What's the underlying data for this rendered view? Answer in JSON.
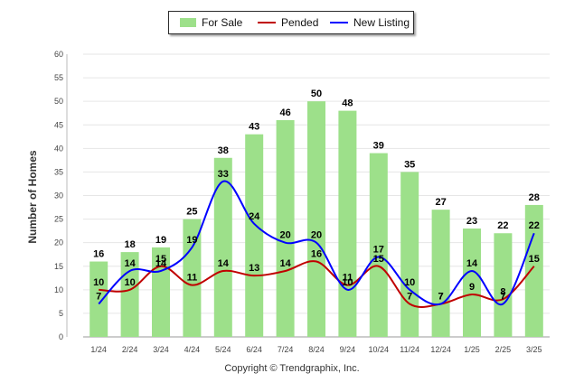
{
  "chart_data": {
    "type": "bar",
    "categories": [
      "1/24",
      "2/24",
      "3/24",
      "4/24",
      "5/24",
      "6/24",
      "7/24",
      "8/24",
      "9/24",
      "10/24",
      "11/24",
      "12/24",
      "1/25",
      "2/25",
      "3/25"
    ],
    "ylabel": "Number of Homes",
    "ylim": [
      0,
      60
    ],
    "yticks": [
      0,
      5,
      10,
      15,
      20,
      25,
      30,
      35,
      40,
      45,
      50,
      55,
      60
    ],
    "grid": true,
    "legend_position": "top-center",
    "series": [
      {
        "name": "For Sale",
        "kind": "bar",
        "color": "#9de08a",
        "values": [
          16,
          18,
          19,
          25,
          38,
          43,
          46,
          50,
          48,
          39,
          35,
          27,
          23,
          22,
          28
        ]
      },
      {
        "name": "Pended",
        "kind": "line",
        "color": "#c00000",
        "values": [
          10,
          10,
          15,
          11,
          14,
          13,
          14,
          16,
          11,
          15,
          7,
          7,
          9,
          8,
          15
        ]
      },
      {
        "name": "New Listing",
        "kind": "line",
        "color": "#0000ff",
        "values": [
          7,
          14,
          14,
          19,
          33,
          24,
          20,
          20,
          10,
          17,
          10,
          7,
          14,
          7,
          22
        ]
      }
    ]
  },
  "legend": {
    "for_sale": "For Sale",
    "pended": "Pended",
    "new_listing": "New Listing"
  },
  "footer": {
    "copyright": "Copyright © Trendgraphix, Inc."
  }
}
